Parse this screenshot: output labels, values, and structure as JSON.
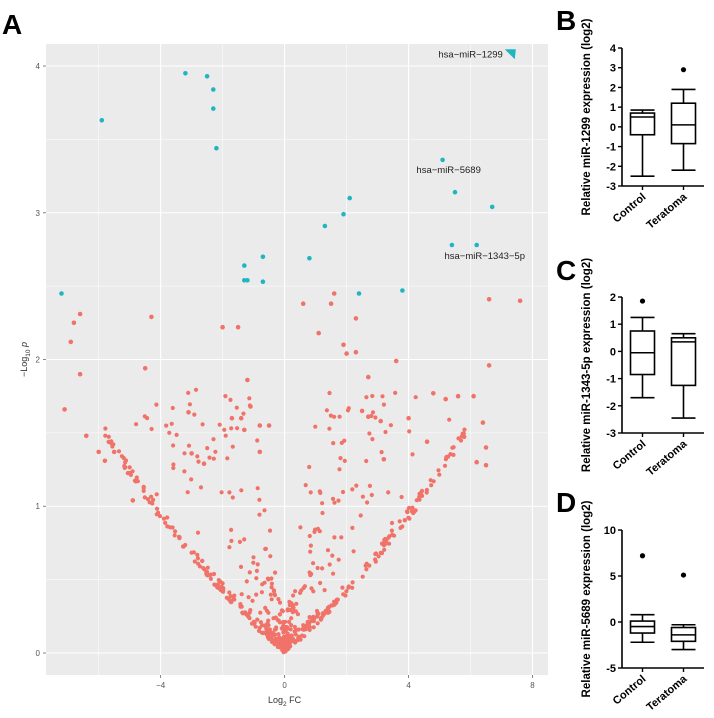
{
  "panels": {
    "A": "A",
    "B": "B",
    "C": "C",
    "D": "D"
  },
  "colors": {
    "nonsig": "#f07268",
    "sig": "#1fb6bf",
    "panel_bg": "#ebebeb",
    "grid": "#ffffff"
  },
  "chart_data": [
    {
      "type": "scatter",
      "title": "",
      "xlabel": "Log2 FC",
      "xlabel_main": "Log",
      "xlabel_sub": "2",
      "xlabel_tail": " FC",
      "ylabel_pre": "−Log",
      "ylabel_sub": "10",
      "ylabel_tail": " p",
      "xlim": [
        -7.7,
        8.5
      ],
      "ylim": [
        -0.15,
        4.15
      ],
      "xticks": [
        -4,
        0,
        4,
        8
      ],
      "xtick_labels": [
        "−4",
        "0",
        "4",
        "8"
      ],
      "yticks": [
        0,
        1,
        2,
        3,
        4
      ],
      "ytick_labels": [
        "0",
        "1",
        "2",
        "3",
        "4"
      ],
      "grid": true,
      "series": [
        {
          "name": "significant",
          "points": [
            [
              -3.2,
              3.95
            ],
            [
              -2.5,
              3.93
            ],
            [
              -2.3,
              3.84
            ],
            [
              -2.3,
              3.71
            ],
            [
              -2.2,
              3.44
            ],
            [
              -5.9,
              3.63
            ],
            [
              -7.2,
              2.45
            ],
            [
              -1.3,
              2.64
            ],
            [
              -1.3,
              2.54
            ],
            [
              -1.2,
              2.54
            ],
            [
              -0.7,
              2.7
            ],
            [
              -0.7,
              2.53
            ],
            [
              1.3,
              2.91
            ],
            [
              0.8,
              2.69
            ],
            [
              1.9,
              2.99
            ],
            [
              2.1,
              3.1
            ],
            [
              2.4,
              2.45
            ],
            [
              3.8,
              2.47
            ],
            [
              5.1,
              3.36
            ],
            [
              5.5,
              3.14
            ],
            [
              6.7,
              3.04
            ],
            [
              5.4,
              2.78
            ],
            [
              6.2,
              2.78
            ]
          ]
        },
        {
          "name": "nonsignificant",
          "points": [
            [
              -6.6,
              2.31
            ],
            [
              -6.8,
              2.25
            ],
            [
              -6.9,
              2.12
            ],
            [
              -6.6,
              1.9
            ],
            [
              -6.4,
              1.48
            ],
            [
              -7.1,
              1.66
            ],
            [
              -6.0,
              1.37
            ],
            [
              -5.8,
              1.31
            ],
            [
              -5.5,
              1.37
            ],
            [
              -4.3,
              2.29
            ],
            [
              -4.5,
              1.94
            ],
            [
              -2.0,
              2.22
            ],
            [
              -1.5,
              2.22
            ],
            [
              -4.8,
              1.17
            ],
            [
              -4.9,
              1.04
            ],
            [
              -3.1,
              1.64
            ],
            [
              -3.0,
              1.36
            ],
            [
              -2.6,
              1.29
            ],
            [
              -1.7,
              1.6
            ],
            [
              -1.4,
              1.6
            ],
            [
              -0.8,
              1.55
            ],
            [
              -0.8,
              1.37
            ],
            [
              -0.5,
              1.55
            ],
            [
              -1.2,
              1.86
            ],
            [
              -1.1,
              1.68
            ],
            [
              -1.3,
              1.52
            ],
            [
              1.1,
              2.18
            ],
            [
              1.9,
              2.1
            ],
            [
              2.0,
              2.04
            ],
            [
              2.3,
              2.05
            ],
            [
              2.5,
              1.65
            ],
            [
              2.7,
              1.61
            ],
            [
              3.6,
              1.99
            ],
            [
              4.8,
              1.77
            ],
            [
              5.2,
              1.73
            ],
            [
              5.6,
              1.75
            ],
            [
              6.1,
              1.75
            ],
            [
              6.4,
              1.57
            ],
            [
              6.6,
              1.96
            ],
            [
              6.5,
              1.4
            ],
            [
              6.2,
              1.3
            ],
            [
              6.5,
              1.28
            ],
            [
              7.6,
              2.4
            ],
            [
              6.6,
              2.41
            ],
            [
              2.3,
              2.28
            ],
            [
              1.5,
              2.38
            ],
            [
              1.6,
              2.45
            ],
            [
              0.6,
              2.38
            ],
            [
              2.7,
              1.88
            ],
            [
              3.1,
              1.58
            ],
            [
              4.0,
              1.6
            ],
            [
              4.6,
              1.44
            ],
            [
              3.2,
              1.32
            ]
          ]
        }
      ],
      "annotations": [
        {
          "text": "hsa−miR−1299",
          "x": 7.3,
          "y": 4.08,
          "marker": "triangle"
        },
        {
          "text": "hsa−miR−5689",
          "x": 5.1,
          "y": 3.36
        },
        {
          "text": "hsa−miR−1343−5p",
          "x": 6.2,
          "y": 2.78
        }
      ],
      "cloud": {
        "description": "volcano cloud of non-significant points",
        "count": 620,
        "seed": 17
      }
    },
    {
      "type": "box",
      "panel": "B",
      "ylabel": "Relative miR-1299 expression (log2)",
      "ylim": [
        -3,
        4
      ],
      "yticks": [
        -3,
        -2,
        -1,
        0,
        1,
        2,
        3,
        4
      ],
      "ytick_labels": [
        "-3",
        "-2",
        "-1",
        "0",
        "1",
        "2",
        "3",
        "4"
      ],
      "categories": [
        "Control",
        "Teratoma"
      ],
      "boxes": [
        {
          "min": -2.5,
          "q1": -0.4,
          "median": 0.5,
          "q3": 0.7,
          "max": 0.85,
          "outliers": []
        },
        {
          "min": -2.2,
          "q1": -0.85,
          "median": 0.1,
          "q3": 1.2,
          "max": 1.9,
          "outliers": [
            2.9
          ]
        }
      ]
    },
    {
      "type": "box",
      "panel": "C",
      "ylabel": "Relative miR-1343-5p expression (log2)",
      "ylim": [
        -3,
        2
      ],
      "yticks": [
        -3,
        -2,
        -1,
        0,
        1,
        2
      ],
      "ytick_labels": [
        "-3",
        "-2",
        "-1",
        "0",
        "1",
        "2"
      ],
      "categories": [
        "Control",
        "Teratoma"
      ],
      "boxes": [
        {
          "min": -1.7,
          "q1": -0.85,
          "median": -0.05,
          "q3": 0.75,
          "max": 1.25,
          "outliers": [
            1.85
          ]
        },
        {
          "min": -2.45,
          "q1": -1.25,
          "median": 0.35,
          "q3": 0.5,
          "max": 0.65,
          "outliers": []
        }
      ]
    },
    {
      "type": "box",
      "panel": "D",
      "ylabel": "Relative miR-5689 expression (log2)",
      "ylim": [
        -5,
        10
      ],
      "yticks": [
        -5,
        0,
        5,
        10
      ],
      "ytick_labels": [
        "-5",
        "0",
        "5",
        "10"
      ],
      "categories": [
        "Control",
        "Teratoma"
      ],
      "boxes": [
        {
          "min": -2.2,
          "q1": -1.2,
          "median": -0.5,
          "q3": 0.1,
          "max": 0.8,
          "outliers": [
            7.2
          ]
        },
        {
          "min": -3.0,
          "q1": -2.1,
          "median": -1.4,
          "q3": -0.6,
          "max": -0.3,
          "outliers": [
            5.1
          ]
        }
      ]
    }
  ]
}
